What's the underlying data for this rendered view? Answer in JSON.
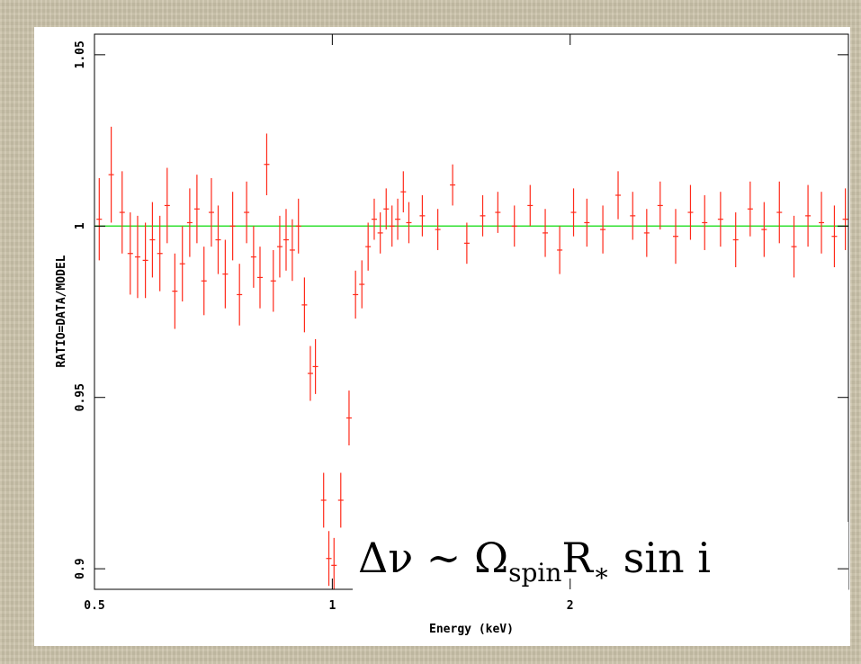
{
  "chart_data": {
    "type": "errorbar",
    "xlabel": "Energy (keV)",
    "ylabel": "RATIO=DATA/MODEL",
    "xscale": "log",
    "xlim": [
      0.5,
      4.5
    ],
    "xticks": [
      0.5,
      1,
      2
    ],
    "ylim": [
      0.894,
      1.056
    ],
    "yticks": [
      0.9,
      0.95,
      1,
      1.05
    ],
    "annotation": [
      "Δν ∼ Ω",
      "spin",
      "R",
      "∗",
      " sin i"
    ],
    "series": [
      {
        "color": "#ff2a1a",
        "x": [
          0.507,
          0.525,
          0.542,
          0.555,
          0.567,
          0.58,
          0.592,
          0.605,
          0.618,
          0.632,
          0.646,
          0.66,
          0.674,
          0.688,
          0.703,
          0.717,
          0.732,
          0.748,
          0.763,
          0.779,
          0.795,
          0.81,
          0.826,
          0.842,
          0.858,
          0.874,
          0.89,
          0.906,
          0.922,
          0.938,
          0.952,
          0.975,
          0.99,
          1.005,
          1.025,
          1.05,
          1.07,
          1.09,
          1.11,
          1.13,
          1.15,
          1.17,
          1.19,
          1.21,
          1.23,
          1.25,
          1.3,
          1.36,
          1.42,
          1.48,
          1.55,
          1.62,
          1.7,
          1.78,
          1.86,
          1.94,
          2.02,
          2.1,
          2.2,
          2.3,
          2.4,
          2.5,
          2.6,
          2.72,
          2.84,
          2.96,
          3.1,
          3.24,
          3.38,
          3.52,
          3.68,
          3.84,
          4.0,
          4.16,
          4.32,
          4.46
        ],
        "values": [
          1.002,
          1.015,
          1.004,
          0.992,
          0.991,
          0.99,
          0.996,
          0.992,
          1.006,
          0.981,
          0.989,
          1.001,
          1.005,
          0.984,
          1.004,
          0.996,
          0.986,
          1.0,
          0.98,
          1.004,
          0.991,
          0.985,
          1.018,
          0.984,
          0.994,
          0.996,
          0.993,
          1.0,
          0.977,
          0.957,
          0.959,
          0.92,
          0.903,
          0.901,
          0.92,
          0.944,
          0.98,
          0.983,
          0.994,
          1.002,
          0.998,
          1.005,
          1.0,
          1.002,
          1.01,
          1.001,
          1.003,
          0.999,
          1.012,
          0.995,
          1.003,
          1.004,
          1.0,
          1.006,
          0.998,
          0.993,
          1.004,
          1.001,
          0.999,
          1.009,
          1.003,
          0.998,
          1.006,
          0.997,
          1.004,
          1.001,
          1.002,
          0.996,
          1.005,
          0.999,
          1.004,
          0.994,
          1.003,
          1.001,
          0.997,
          1.002
        ],
        "errors": [
          0.012,
          0.014,
          0.012,
          0.012,
          0.012,
          0.011,
          0.011,
          0.011,
          0.011,
          0.011,
          0.011,
          0.01,
          0.01,
          0.01,
          0.01,
          0.01,
          0.01,
          0.01,
          0.009,
          0.009,
          0.009,
          0.009,
          0.009,
          0.009,
          0.009,
          0.009,
          0.009,
          0.008,
          0.008,
          0.008,
          0.008,
          0.008,
          0.008,
          0.008,
          0.008,
          0.008,
          0.007,
          0.007,
          0.007,
          0.006,
          0.006,
          0.006,
          0.006,
          0.006,
          0.006,
          0.006,
          0.006,
          0.006,
          0.006,
          0.006,
          0.006,
          0.006,
          0.006,
          0.006,
          0.007,
          0.007,
          0.007,
          0.007,
          0.007,
          0.007,
          0.007,
          0.007,
          0.007,
          0.008,
          0.008,
          0.008,
          0.008,
          0.008,
          0.008,
          0.008,
          0.009,
          0.009,
          0.009,
          0.009,
          0.009,
          0.009
        ]
      }
    ],
    "model_line": {
      "color": "#33e033",
      "x": [
        0.5,
        4.5
      ],
      "values": [
        1,
        1
      ]
    }
  }
}
